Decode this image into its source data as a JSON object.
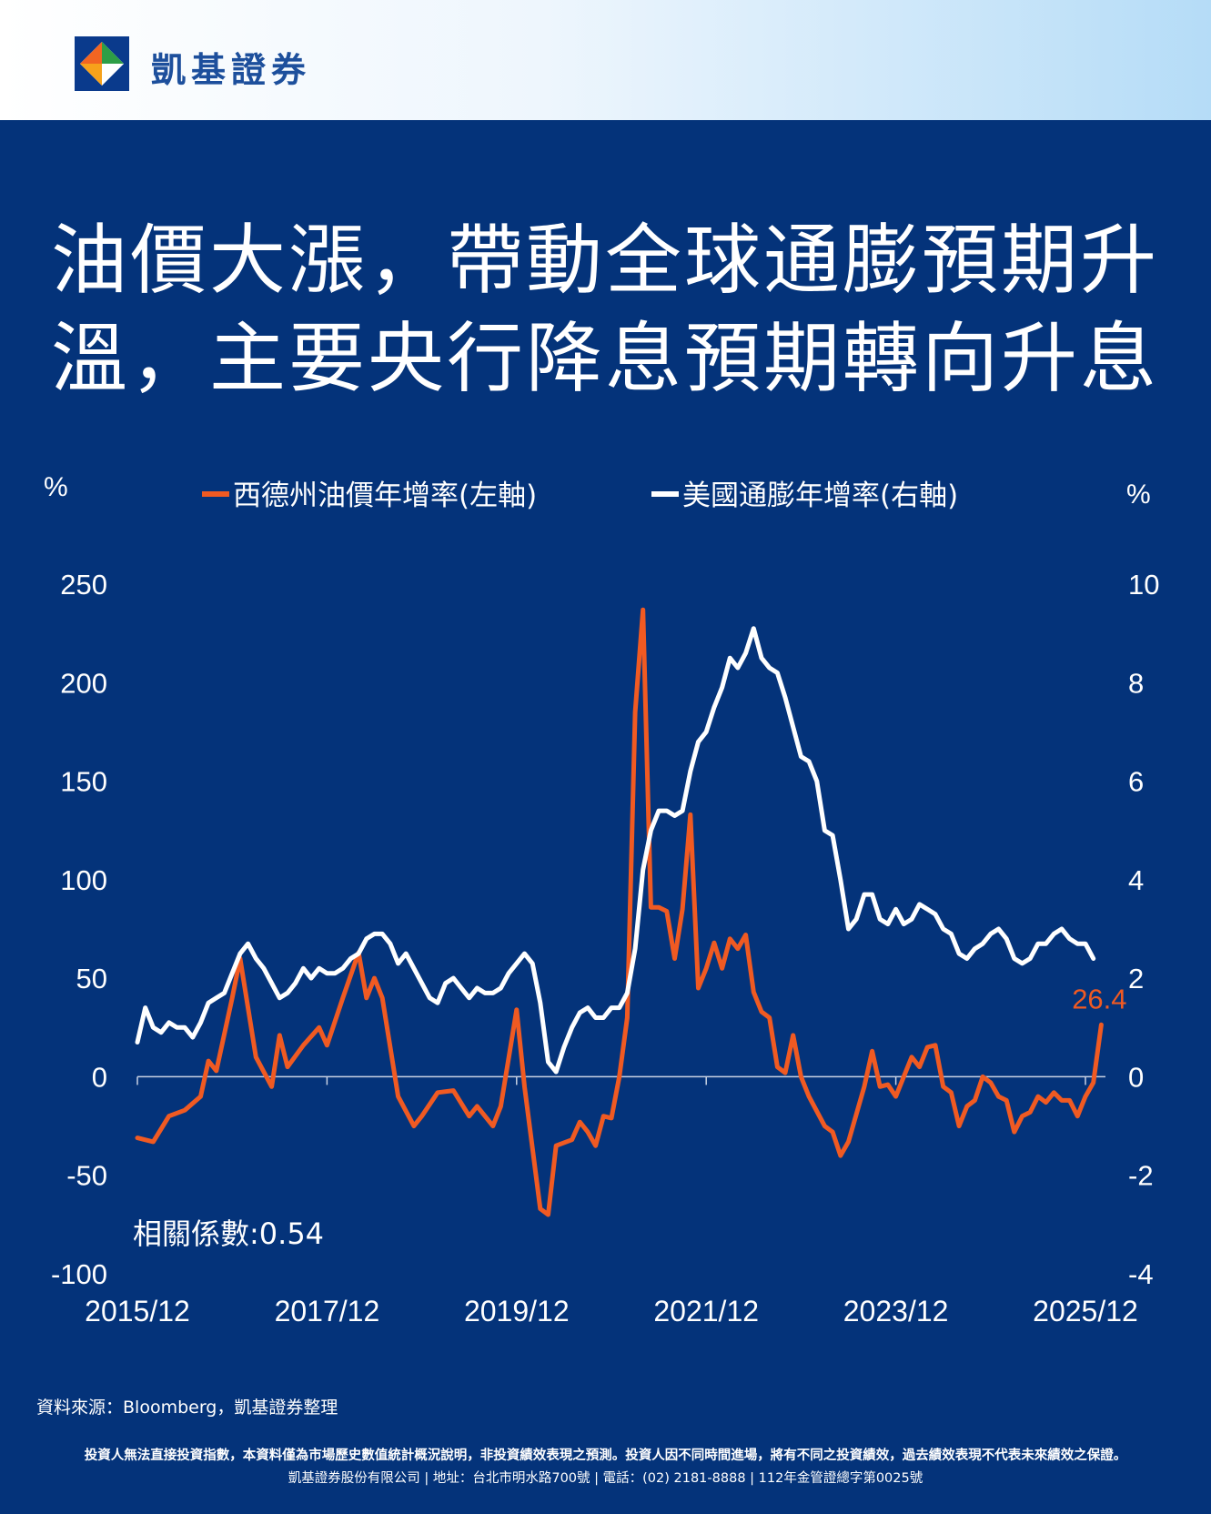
{
  "brand": {
    "name": "凱基證券",
    "logo_colors": [
      "#0a3a8c",
      "#f26522",
      "#2e9e46",
      "#ffffff"
    ]
  },
  "headline": {
    "line1": "油價大漲，帶動全球通膨預期升",
    "line2": "溫，主要央行降息預期轉向升息"
  },
  "colors": {
    "background": "#04337a",
    "oil": "#f05a22",
    "cpi": "#ffffff"
  },
  "chart_data": {
    "type": "line",
    "left_unit": "%",
    "right_unit": "%",
    "left_ylim": [
      -100,
      250
    ],
    "right_ylim": [
      -4,
      10
    ],
    "left_ticks": [
      "250",
      "200",
      "150",
      "100",
      "50",
      "0",
      "-50",
      "-100"
    ],
    "right_ticks": [
      "10",
      "8",
      "6",
      "4",
      "2",
      "0",
      "-2",
      "-4"
    ],
    "x_tick_labels": [
      "2015/12",
      "2017/12",
      "2019/12",
      "2021/12",
      "2023/12",
      "2025/12"
    ],
    "x_range": [
      "2015/12",
      "2025/12"
    ],
    "series": [
      {
        "name": "西德州油價年增率(左軸)",
        "axis": "left",
        "color": "#f05a22",
        "points": [
          [
            "2015/12",
            -31
          ],
          [
            "2016/02",
            -33
          ],
          [
            "2016/04",
            -20
          ],
          [
            "2016/06",
            -17
          ],
          [
            "2016/08",
            -10
          ],
          [
            "2016/09",
            8
          ],
          [
            "2016/10",
            3
          ],
          [
            "2016/12",
            40
          ],
          [
            "2017/01",
            60
          ],
          [
            "2017/03",
            10
          ],
          [
            "2017/05",
            -5
          ],
          [
            "2017/06",
            21
          ],
          [
            "2017/07",
            5
          ],
          [
            "2017/09",
            16
          ],
          [
            "2017/11",
            25
          ],
          [
            "2017/12",
            16
          ],
          [
            "2018/02",
            40
          ],
          [
            "2018/04",
            63
          ],
          [
            "2018/05",
            40
          ],
          [
            "2018/06",
            50
          ],
          [
            "2018/07",
            40
          ],
          [
            "2018/09",
            -10
          ],
          [
            "2018/11",
            -25
          ],
          [
            "2018/12",
            -20
          ],
          [
            "2019/02",
            -8
          ],
          [
            "2019/04",
            -7
          ],
          [
            "2019/06",
            -20
          ],
          [
            "2019/07",
            -15
          ],
          [
            "2019/09",
            -25
          ],
          [
            "2019/10",
            -15
          ],
          [
            "2019/12",
            34
          ],
          [
            "2020/01",
            -5
          ],
          [
            "2020/03",
            -67
          ],
          [
            "2020/04",
            -70
          ],
          [
            "2020/05",
            -35
          ],
          [
            "2020/07",
            -32
          ],
          [
            "2020/08",
            -23
          ],
          [
            "2020/09",
            -28
          ],
          [
            "2020/10",
            -35
          ],
          [
            "2020/11",
            -20
          ],
          [
            "2020/12",
            -21
          ],
          [
            "2021/01",
            0
          ],
          [
            "2021/02",
            30
          ],
          [
            "2021/03",
            185
          ],
          [
            "2021/04",
            237
          ],
          [
            "2021/05",
            86
          ],
          [
            "2021/06",
            86
          ],
          [
            "2021/07",
            84
          ],
          [
            "2021/08",
            60
          ],
          [
            "2021/09",
            85
          ],
          [
            "2021/10",
            133
          ],
          [
            "2021/11",
            45
          ],
          [
            "2021/12",
            55
          ],
          [
            "2022/01",
            68
          ],
          [
            "2022/02",
            55
          ],
          [
            "2022/03",
            70
          ],
          [
            "2022/04",
            65
          ],
          [
            "2022/05",
            72
          ],
          [
            "2022/06",
            43
          ],
          [
            "2022/07",
            33
          ],
          [
            "2022/08",
            30
          ],
          [
            "2022/09",
            5
          ],
          [
            "2022/10",
            2
          ],
          [
            "2022/11",
            21
          ],
          [
            "2022/12",
            0
          ],
          [
            "2023/01",
            -10
          ],
          [
            "2023/03",
            -25
          ],
          [
            "2023/04",
            -28
          ],
          [
            "2023/05",
            -40
          ],
          [
            "2023/06",
            -33
          ],
          [
            "2023/08",
            -5
          ],
          [
            "2023/09",
            13
          ],
          [
            "2023/10",
            -5
          ],
          [
            "2023/11",
            -4
          ],
          [
            "2023/12",
            -10
          ],
          [
            "2024/02",
            10
          ],
          [
            "2024/03",
            5
          ],
          [
            "2024/04",
            15
          ],
          [
            "2024/05",
            16
          ],
          [
            "2024/06",
            -5
          ],
          [
            "2024/07",
            -8
          ],
          [
            "2024/08",
            -25
          ],
          [
            "2024/09",
            -15
          ],
          [
            "2024/10",
            -12
          ],
          [
            "2024/11",
            0
          ],
          [
            "2024/12",
            -3
          ],
          [
            "2025/01",
            -10
          ],
          [
            "2025/02",
            -12
          ],
          [
            "2025/03",
            -28
          ],
          [
            "2025/04",
            -20
          ],
          [
            "2025/05",
            -18
          ],
          [
            "2025/06",
            -10
          ],
          [
            "2025/07",
            -13
          ],
          [
            "2025/08",
            -8
          ],
          [
            "2025/09",
            -12
          ],
          [
            "2025/10",
            -12
          ],
          [
            "2025/11",
            -20
          ],
          [
            "2025/12",
            -10
          ],
          [
            "2026/01",
            -3
          ],
          [
            "2026/02",
            26.4
          ]
        ]
      },
      {
        "name": "美國通膨年增率(右軸)",
        "axis": "right",
        "color": "#ffffff",
        "points": [
          [
            "2015/12",
            0.7
          ],
          [
            "2016/01",
            1.4
          ],
          [
            "2016/02",
            1.0
          ],
          [
            "2016/03",
            0.9
          ],
          [
            "2016/04",
            1.1
          ],
          [
            "2016/05",
            1.0
          ],
          [
            "2016/06",
            1.0
          ],
          [
            "2016/07",
            0.8
          ],
          [
            "2016/08",
            1.1
          ],
          [
            "2016/09",
            1.5
          ],
          [
            "2016/10",
            1.6
          ],
          [
            "2016/11",
            1.7
          ],
          [
            "2016/12",
            2.1
          ],
          [
            "2017/01",
            2.5
          ],
          [
            "2017/02",
            2.7
          ],
          [
            "2017/03",
            2.4
          ],
          [
            "2017/04",
            2.2
          ],
          [
            "2017/05",
            1.9
          ],
          [
            "2017/06",
            1.6
          ],
          [
            "2017/07",
            1.7
          ],
          [
            "2017/08",
            1.9
          ],
          [
            "2017/09",
            2.2
          ],
          [
            "2017/10",
            2.0
          ],
          [
            "2017/11",
            2.2
          ],
          [
            "2017/12",
            2.1
          ],
          [
            "2018/01",
            2.1
          ],
          [
            "2018/02",
            2.2
          ],
          [
            "2018/03",
            2.4
          ],
          [
            "2018/04",
            2.5
          ],
          [
            "2018/05",
            2.8
          ],
          [
            "2018/06",
            2.9
          ],
          [
            "2018/07",
            2.9
          ],
          [
            "2018/08",
            2.7
          ],
          [
            "2018/09",
            2.3
          ],
          [
            "2018/10",
            2.5
          ],
          [
            "2018/11",
            2.2
          ],
          [
            "2018/12",
            1.9
          ],
          [
            "2019/01",
            1.6
          ],
          [
            "2019/02",
            1.5
          ],
          [
            "2019/03",
            1.9
          ],
          [
            "2019/04",
            2.0
          ],
          [
            "2019/05",
            1.8
          ],
          [
            "2019/06",
            1.6
          ],
          [
            "2019/07",
            1.8
          ],
          [
            "2019/08",
            1.7
          ],
          [
            "2019/09",
            1.7
          ],
          [
            "2019/10",
            1.8
          ],
          [
            "2019/11",
            2.1
          ],
          [
            "2019/12",
            2.3
          ],
          [
            "2020/01",
            2.5
          ],
          [
            "2020/02",
            2.3
          ],
          [
            "2020/03",
            1.5
          ],
          [
            "2020/04",
            0.3
          ],
          [
            "2020/05",
            0.1
          ],
          [
            "2020/06",
            0.6
          ],
          [
            "2020/07",
            1.0
          ],
          [
            "2020/08",
            1.3
          ],
          [
            "2020/09",
            1.4
          ],
          [
            "2020/10",
            1.2
          ],
          [
            "2020/11",
            1.2
          ],
          [
            "2020/12",
            1.4
          ],
          [
            "2021/01",
            1.4
          ],
          [
            "2021/02",
            1.7
          ],
          [
            "2021/03",
            2.6
          ],
          [
            "2021/04",
            4.2
          ],
          [
            "2021/05",
            5.0
          ],
          [
            "2021/06",
            5.4
          ],
          [
            "2021/07",
            5.4
          ],
          [
            "2021/08",
            5.3
          ],
          [
            "2021/09",
            5.4
          ],
          [
            "2021/10",
            6.2
          ],
          [
            "2021/11",
            6.8
          ],
          [
            "2021/12",
            7.0
          ],
          [
            "2022/01",
            7.5
          ],
          [
            "2022/02",
            7.9
          ],
          [
            "2022/03",
            8.5
          ],
          [
            "2022/04",
            8.3
          ],
          [
            "2022/05",
            8.6
          ],
          [
            "2022/06",
            9.1
          ],
          [
            "2022/07",
            8.5
          ],
          [
            "2022/08",
            8.3
          ],
          [
            "2022/09",
            8.2
          ],
          [
            "2022/10",
            7.7
          ],
          [
            "2022/11",
            7.1
          ],
          [
            "2022/12",
            6.5
          ],
          [
            "2023/01",
            6.4
          ],
          [
            "2023/02",
            6.0
          ],
          [
            "2023/03",
            5.0
          ],
          [
            "2023/04",
            4.9
          ],
          [
            "2023/05",
            4.0
          ],
          [
            "2023/06",
            3.0
          ],
          [
            "2023/07",
            3.2
          ],
          [
            "2023/08",
            3.7
          ],
          [
            "2023/09",
            3.7
          ],
          [
            "2023/10",
            3.2
          ],
          [
            "2023/11",
            3.1
          ],
          [
            "2023/12",
            3.4
          ],
          [
            "2024/01",
            3.1
          ],
          [
            "2024/02",
            3.2
          ],
          [
            "2024/03",
            3.5
          ],
          [
            "2024/04",
            3.4
          ],
          [
            "2024/05",
            3.3
          ],
          [
            "2024/06",
            3.0
          ],
          [
            "2024/07",
            2.9
          ],
          [
            "2024/08",
            2.5
          ],
          [
            "2024/09",
            2.4
          ],
          [
            "2024/10",
            2.6
          ],
          [
            "2024/11",
            2.7
          ],
          [
            "2024/12",
            2.9
          ],
          [
            "2025/01",
            3.0
          ],
          [
            "2025/02",
            2.8
          ],
          [
            "2025/03",
            2.4
          ],
          [
            "2025/04",
            2.3
          ],
          [
            "2025/05",
            2.4
          ],
          [
            "2025/06",
            2.7
          ],
          [
            "2025/07",
            2.7
          ],
          [
            "2025/08",
            2.9
          ],
          [
            "2025/09",
            3.0
          ],
          [
            "2025/10",
            2.8
          ],
          [
            "2025/11",
            2.7
          ],
          [
            "2025/12",
            2.7
          ],
          [
            "2026/01",
            2.4
          ]
        ]
      }
    ],
    "annotations": {
      "last_oil_label": "26.4",
      "correlation": "相關係數:0.54"
    }
  },
  "footer": {
    "source": "資料來源：Bloomberg，凱基證券整理",
    "disclaimer": "投資人無法直接投資指數，本資料僅為市場歷史數值統計概況說明，非投資績效表現之預測。投資人因不同時間進場，將有不同之投資績效，過去績效表現不代表未來績效之保證。",
    "company_line": "凱基證券股份有限公司 | 地址：台北市明水路700號 | 電話：(02) 2181-8888 | 112年金管證總字第0025號"
  }
}
